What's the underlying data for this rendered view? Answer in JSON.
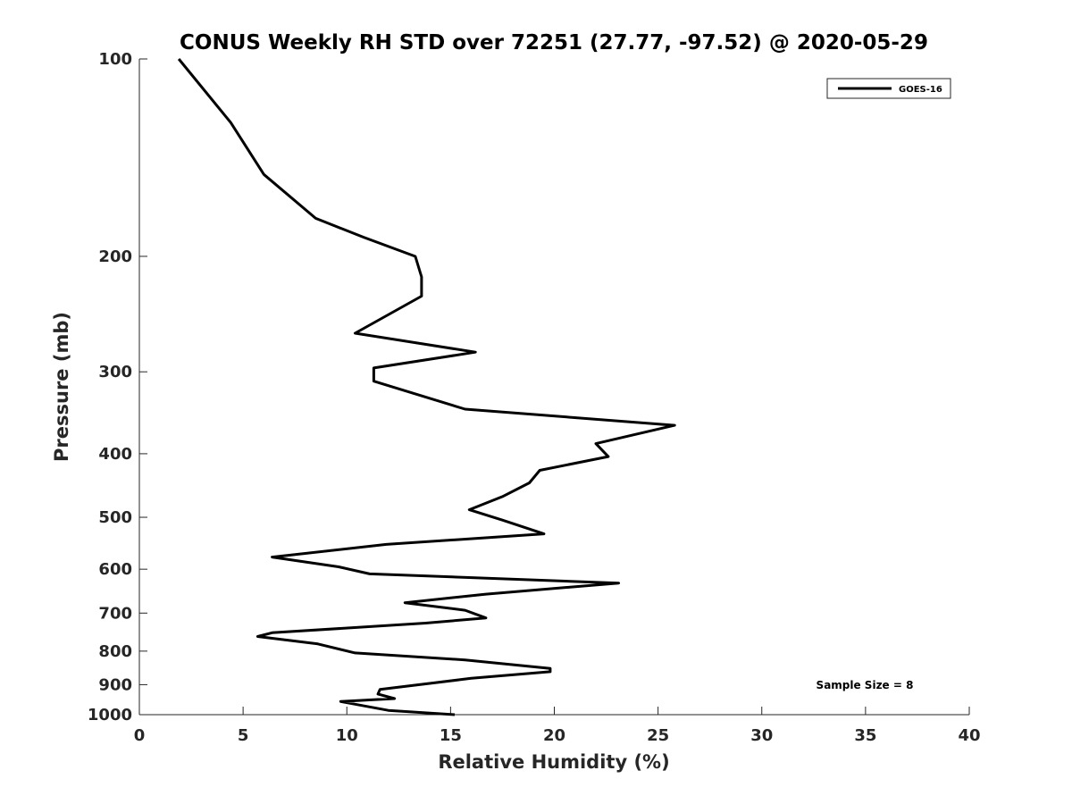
{
  "chart_data": {
    "type": "line",
    "title": "CONUS Weekly RH STD over 72251 (27.77, -97.52) @ 2020-05-29",
    "xlabel": "Relative Humidity (%)",
    "ylabel": "Pressure (mb)",
    "xlim": [
      0,
      40
    ],
    "ylim": [
      100,
      1000
    ],
    "yscale": "log",
    "y_reversed": true,
    "xticks": [
      0,
      5,
      10,
      15,
      20,
      25,
      30,
      35,
      40
    ],
    "xtick_labels": [
      "0",
      "5",
      "10",
      "15",
      "20",
      "25",
      "30",
      "35",
      "40"
    ],
    "yticks": [
      100,
      200,
      300,
      400,
      500,
      600,
      700,
      800,
      900,
      1000
    ],
    "ytick_labels": [
      "100",
      "200",
      "300",
      "400",
      "500",
      "600",
      "700",
      "800",
      "900",
      "1000"
    ],
    "legend": {
      "placement": "top-right",
      "entries": [
        "GOES-16"
      ]
    },
    "annotation": "Sample Size = 8",
    "series": [
      {
        "name": "GOES-16",
        "color": "#000000",
        "points": [
          [
            1.9,
            100
          ],
          [
            4.4,
            125
          ],
          [
            6.0,
            150
          ],
          [
            8.5,
            175
          ],
          [
            10.8,
            187
          ],
          [
            13.3,
            200
          ],
          [
            13.6,
            215
          ],
          [
            13.6,
            230
          ],
          [
            10.4,
            262
          ],
          [
            16.2,
            280
          ],
          [
            11.3,
            296
          ],
          [
            11.3,
            310
          ],
          [
            15.7,
            342
          ],
          [
            25.8,
            362
          ],
          [
            22.0,
            386
          ],
          [
            22.6,
            404
          ],
          [
            19.3,
            424
          ],
          [
            18.8,
            443
          ],
          [
            17.5,
            465
          ],
          [
            15.9,
            487
          ],
          [
            17.5,
            505
          ],
          [
            19.5,
            530
          ],
          [
            11.9,
            550
          ],
          [
            6.4,
            575
          ],
          [
            9.6,
            595
          ],
          [
            11.1,
            610
          ],
          [
            23.1,
            630
          ],
          [
            16.7,
            655
          ],
          [
            12.8,
            675
          ],
          [
            15.7,
            693
          ],
          [
            16.7,
            712
          ],
          [
            13.8,
            725
          ],
          [
            6.4,
            750
          ],
          [
            5.7,
            760
          ],
          [
            8.6,
            780
          ],
          [
            10.4,
            805
          ],
          [
            15.7,
            825
          ],
          [
            19.8,
            850
          ],
          [
            19.8,
            860
          ],
          [
            16.0,
            880
          ],
          [
            11.6,
            915
          ],
          [
            11.5,
            930
          ],
          [
            12.3,
            945
          ],
          [
            9.7,
            955
          ],
          [
            12.0,
            985
          ],
          [
            15.2,
            1000
          ]
        ]
      }
    ]
  }
}
